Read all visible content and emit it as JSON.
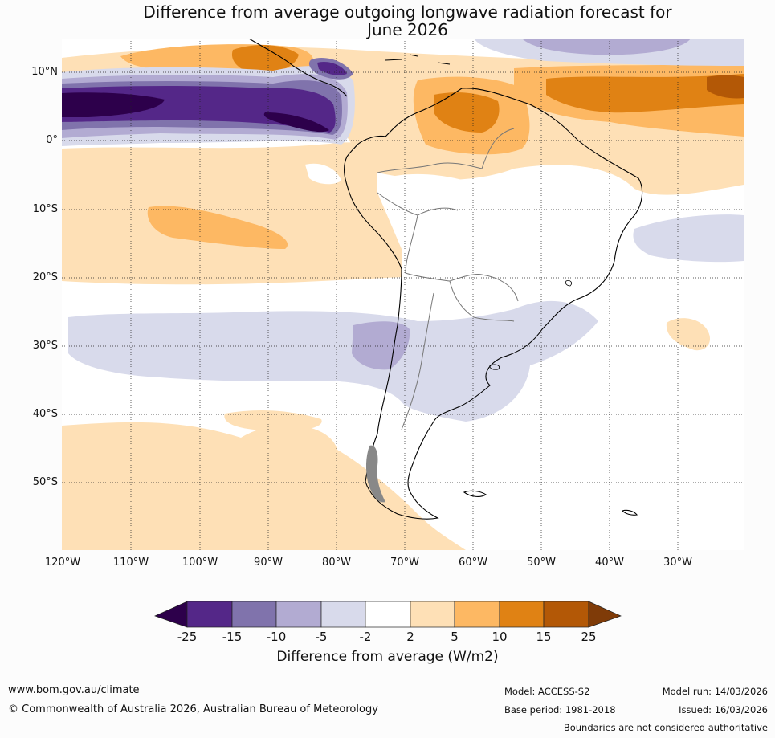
{
  "title": {
    "line1": "Difference from average outgoing longwave radiation forecast for",
    "line2": "June 2026"
  },
  "map": {
    "lat_labels": [
      "10°N",
      "0°",
      "10°S",
      "20°S",
      "30°S",
      "40°S",
      "50°S"
    ],
    "lon_labels": [
      "120°W",
      "110°W",
      "100°W",
      "90°W",
      "80°W",
      "70°W",
      "60°W",
      "50°W",
      "40°W",
      "30°W"
    ]
  },
  "colorbar": {
    "ticks": [
      "-25",
      "-15",
      "-10",
      "-5",
      "-2",
      "2",
      "5",
      "10",
      "15",
      "25"
    ],
    "colors": [
      "#2d004b",
      "#542788",
      "#8073ac",
      "#b2abd2",
      "#d8daeb",
      "#ffffff",
      "#fee0b6",
      "#fdb863",
      "#e08214",
      "#b35806",
      "#7f3b08"
    ],
    "label": "Difference from average (W/m2)"
  },
  "footer": {
    "website": "www.bom.gov.au/climate",
    "copyright": "© Commonwealth of Australia 2026, Australian Bureau of Meteorology",
    "model": "Model: ACCESS-S2",
    "base_period": "Base period: 1981-2018",
    "model_run": "Model run: 14/03/2026",
    "issued": "Issued: 16/03/2026",
    "disclaimer": "Boundaries are not considered authoritative"
  }
}
